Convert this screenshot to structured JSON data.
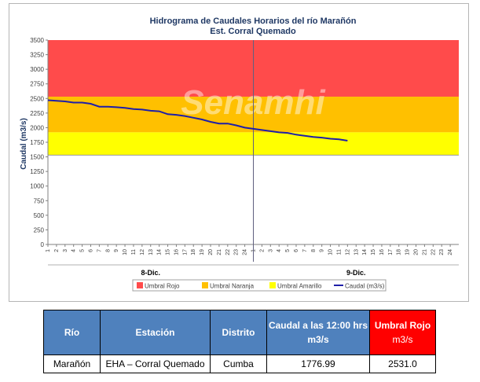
{
  "chart_data": {
    "type": "line",
    "title": "Hidrograma de Caudales Horarios del río Marañón",
    "subtitle": "Est. Corral Quemado",
    "ylabel": "Caudal (m3/s)",
    "ylim": [
      0,
      3500
    ],
    "yticks": [
      0,
      250,
      500,
      750,
      1000,
      1250,
      1500,
      1750,
      2000,
      2250,
      2500,
      2750,
      3000,
      3250,
      3500
    ],
    "xticks": [
      "1",
      "2",
      "3",
      "4",
      "5",
      "6",
      "7",
      "8",
      "9",
      "10",
      "11",
      "12",
      "13",
      "14",
      "15",
      "16",
      "17",
      "18",
      "19",
      "20",
      "21",
      "22",
      "23",
      "24",
      "1",
      "2",
      "3",
      "4",
      "5",
      "6",
      "7",
      "8",
      "9",
      "10",
      "11",
      "12",
      "13",
      "14",
      "15",
      "16",
      "17",
      "18",
      "19",
      "20",
      "21",
      "22",
      "23",
      "24"
    ],
    "days": [
      "8-Dic.",
      "9-Dic."
    ],
    "thresholds": [
      {
        "name": "Umbral Rojo",
        "from": 2531,
        "to": 3500,
        "color": "#ff4b4b"
      },
      {
        "name": "Umbral Naranja",
        "from": 1920,
        "to": 2531,
        "color": "#ffc000"
      },
      {
        "name": "Umbral Amarillo",
        "from": 1530,
        "to": 1920,
        "color": "#ffff00"
      }
    ],
    "series": [
      {
        "name": "Caudal (m3/s)",
        "color": "#1f1fa8",
        "values": [
          2470,
          2460,
          2450,
          2430,
          2430,
          2410,
          2360,
          2360,
          2350,
          2340,
          2320,
          2310,
          2290,
          2280,
          2230,
          2220,
          2200,
          2170,
          2140,
          2100,
          2070,
          2070,
          2040,
          2000,
          1980,
          1960,
          1940,
          1920,
          1910,
          1880,
          1860,
          1840,
          1830,
          1810,
          1800,
          1777
        ]
      }
    ],
    "legend_position": "bottom",
    "grid": false
  },
  "watermark": "Senamhi",
  "table": {
    "headers": {
      "rio": "Río",
      "estacion": "Estación",
      "distrito": "Distrito",
      "caudal_line1": "Caudal a las 12:00 hrs",
      "caudal_line2": "m3/s",
      "umbral_line1": "Umbral Rojo",
      "umbral_line2": "m3/s"
    },
    "row": {
      "rio": "Marañón",
      "estacion": "EHA – Corral Quemado",
      "distrito": "Cumba",
      "caudal": "1776.99",
      "umbral": "2531.0"
    }
  }
}
